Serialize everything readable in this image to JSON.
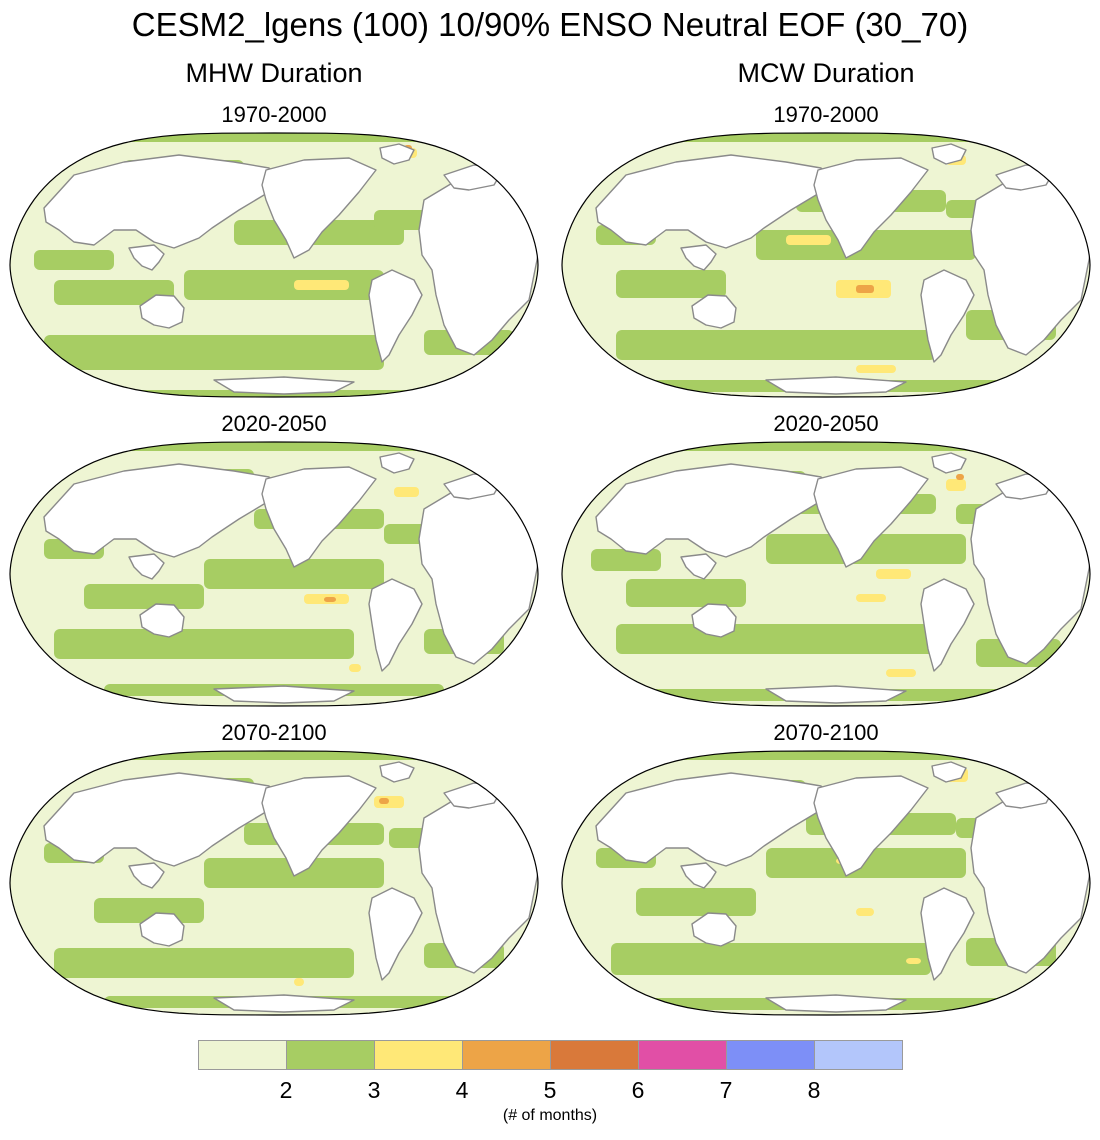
{
  "figure": {
    "title": "CESM2_lgens (100) 10/90% ENSO Neutral EOF (30_70)",
    "columns": [
      "MHW Duration",
      "MCW Duration"
    ],
    "periods": [
      "1970-2000",
      "2020-2050",
      "2070-2100"
    ]
  },
  "colorbar": {
    "colors": [
      "#eef5d3",
      "#a7cd63",
      "#ffe877",
      "#eda447",
      "#d9793a",
      "#e14fa6",
      "#7d8ff7",
      "#b3c6fb"
    ],
    "ticks": [
      "2",
      "3",
      "4",
      "5",
      "6",
      "7",
      "8"
    ],
    "unit_label": "(# of months)"
  },
  "map_colors": {
    "ocean_base": "#eef5d3",
    "land": "#ffffff",
    "coast": "#8a8a8a",
    "frame": "#000000"
  }
}
